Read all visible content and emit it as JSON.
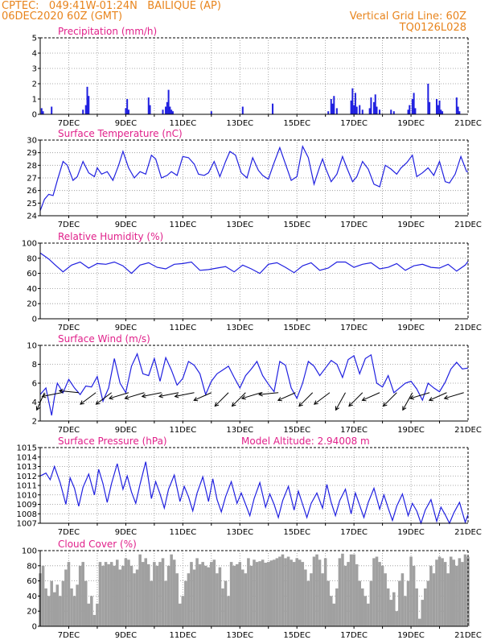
{
  "header": {
    "line1": "CPTEC:   049:41W-01:24N   BAILIQUE (AP)",
    "line2": "06DEC2020 60Z (GMT)",
    "right1": "Vertical Grid Line: 60Z",
    "right2": "TQ0126L028"
  },
  "colors": {
    "series": "#2020e0",
    "cloud": "#a0a0a0",
    "title": "#e0208a",
    "header": "#e8841c",
    "wind": "#000000"
  },
  "x_axis": {
    "start_day": 6,
    "end_day": 21,
    "tick_labels": [
      "7DEC",
      "9DEC",
      "11DEC",
      "13DEC",
      "15DEC",
      "17DEC",
      "19DEC",
      "21DEC"
    ],
    "tick_days": [
      7,
      9,
      11,
      13,
      15,
      17,
      19,
      21
    ],
    "grid_days": [
      7,
      8,
      9,
      10,
      11,
      12,
      13,
      14,
      15,
      16,
      17,
      18,
      19,
      20
    ]
  },
  "chart_data": [
    {
      "type": "bar",
      "title": "Precipitation (mm/h)",
      "ylim": [
        0,
        5
      ],
      "yticks": [
        0,
        1,
        2,
        3,
        4,
        5
      ],
      "x": [
        6.05,
        6.1,
        6.4,
        7.5,
        7.6,
        7.65,
        7.7,
        9.0,
        9.05,
        9.1,
        9.8,
        9.85,
        10.3,
        10.4,
        10.45,
        10.5,
        10.55,
        10.6,
        10.65,
        12.0,
        13.1,
        14.15,
        16.1,
        16.2,
        16.25,
        16.3,
        16.4,
        16.9,
        16.95,
        17.0,
        17.05,
        17.1,
        17.2,
        17.3,
        17.55,
        17.6,
        17.7,
        17.75,
        17.8,
        17.9,
        18.3,
        18.4,
        18.9,
        18.95,
        19.05,
        19.1,
        19.15,
        19.6,
        19.65,
        19.9,
        19.95,
        20.0,
        20.05,
        20.1,
        20.6,
        20.65,
        20.7
      ],
      "values": [
        0.4,
        0.2,
        0.5,
        0.3,
        0.6,
        1.8,
        1.2,
        0.4,
        1.0,
        0.3,
        1.1,
        0.6,
        0.3,
        0.5,
        0.8,
        1.6,
        0.5,
        0.3,
        0.2,
        0.2,
        0.5,
        0.7,
        0.2,
        1.0,
        0.7,
        1.2,
        0.4,
        0.9,
        1.7,
        0.6,
        1.4,
        0.5,
        0.6,
        0.3,
        0.4,
        1.1,
        0.8,
        1.3,
        0.5,
        0.3,
        0.3,
        0.2,
        0.3,
        0.6,
        1.0,
        1.4,
        0.4,
        2.0,
        0.8,
        1.0,
        0.6,
        0.9,
        0.3,
        0.2,
        1.1,
        0.5,
        0.2
      ]
    },
    {
      "type": "line",
      "title": "Surface Temperature (nC)",
      "ylim": [
        24,
        30
      ],
      "yticks": [
        24,
        25,
        26,
        27,
        28,
        29,
        30
      ],
      "x": [
        6.0,
        6.15,
        6.3,
        6.45,
        6.6,
        6.8,
        6.95,
        7.15,
        7.3,
        7.5,
        7.7,
        7.9,
        8.0,
        8.15,
        8.35,
        8.55,
        8.75,
        8.9,
        9.1,
        9.3,
        9.5,
        9.7,
        9.9,
        10.05,
        10.25,
        10.45,
        10.6,
        10.8,
        11.0,
        11.2,
        11.4,
        11.55,
        11.75,
        11.9,
        12.1,
        12.3,
        12.5,
        12.65,
        12.85,
        13.05,
        13.25,
        13.45,
        13.65,
        13.8,
        14.0,
        14.2,
        14.4,
        14.6,
        14.8,
        15.0,
        15.2,
        15.4,
        15.6,
        15.8,
        15.9,
        16.0,
        16.2,
        16.4,
        16.6,
        16.75,
        16.95,
        17.1,
        17.3,
        17.5,
        17.7,
        17.9,
        18.1,
        18.3,
        18.5,
        18.65,
        18.85,
        19.05,
        19.2,
        19.4,
        19.6,
        19.8,
        20.0,
        20.2,
        20.35,
        20.55,
        20.75,
        20.95,
        21.0
      ],
      "values": [
        24.4,
        25.3,
        25.7,
        25.6,
        26.8,
        28.3,
        28.0,
        26.8,
        27.1,
        28.3,
        27.4,
        27.1,
        27.8,
        27.3,
        27.5,
        26.8,
        28.0,
        29.1,
        27.8,
        27.0,
        27.5,
        27.3,
        28.8,
        28.5,
        27.0,
        27.2,
        27.5,
        27.2,
        28.7,
        28.6,
        28.1,
        27.3,
        27.2,
        27.4,
        28.3,
        27.1,
        28.3,
        29.1,
        28.8,
        27.4,
        27.0,
        28.6,
        27.6,
        27.2,
        26.9,
        28.2,
        29.4,
        28.1,
        26.8,
        27.1,
        29.5,
        28.6,
        26.5,
        27.9,
        28.5,
        27.8,
        26.7,
        27.3,
        28.7,
        27.8,
        26.7,
        27.1,
        28.3,
        27.7,
        26.5,
        26.3,
        28.0,
        27.7,
        27.3,
        27.8,
        28.2,
        28.8,
        27.1,
        27.4,
        27.8,
        27.2,
        28.3,
        26.7,
        26.6,
        27.3,
        28.7,
        27.5,
        27.5
      ]
    },
    {
      "type": "line",
      "title": "Relative Humidity (%)",
      "ylim": [
        0,
        100
      ],
      "yticks": [
        0,
        20,
        40,
        60,
        80,
        100
      ],
      "x": [
        6.0,
        6.3,
        6.5,
        6.8,
        7.1,
        7.4,
        7.7,
        8.0,
        8.3,
        8.6,
        8.9,
        9.2,
        9.5,
        9.8,
        10.1,
        10.4,
        10.7,
        11.0,
        11.3,
        11.6,
        11.9,
        12.2,
        12.5,
        12.8,
        13.1,
        13.4,
        13.7,
        14.0,
        14.3,
        14.6,
        14.9,
        15.2,
        15.5,
        15.8,
        16.1,
        16.4,
        16.7,
        17.0,
        17.3,
        17.6,
        17.9,
        18.2,
        18.5,
        18.8,
        19.1,
        19.4,
        19.7,
        20.0,
        20.3,
        20.6,
        20.9,
        21.0
      ],
      "values": [
        87,
        79,
        72,
        62,
        71,
        75,
        67,
        73,
        72,
        75,
        70,
        60,
        71,
        74,
        68,
        66,
        72,
        73,
        75,
        64,
        65,
        67,
        69,
        62,
        71,
        66,
        60,
        72,
        74,
        68,
        61,
        70,
        74,
        64,
        67,
        75,
        75,
        68,
        72,
        74,
        66,
        68,
        73,
        64,
        70,
        72,
        68,
        67,
        72,
        63,
        71,
        76
      ]
    },
    {
      "type": "line",
      "title": "Surface Wind (m/s)",
      "ylim": [
        2,
        10
      ],
      "yticks": [
        2,
        4,
        6,
        8,
        10
      ],
      "x": [
        6.0,
        6.2,
        6.4,
        6.5,
        6.6,
        6.8,
        7.0,
        7.2,
        7.4,
        7.6,
        7.8,
        8.0,
        8.2,
        8.4,
        8.6,
        8.8,
        9.0,
        9.2,
        9.4,
        9.6,
        9.8,
        10.0,
        10.2,
        10.4,
        10.6,
        10.8,
        11.0,
        11.2,
        11.4,
        11.6,
        11.8,
        12.0,
        12.2,
        12.4,
        12.6,
        12.8,
        13.0,
        13.2,
        13.4,
        13.6,
        13.8,
        14.0,
        14.2,
        14.4,
        14.6,
        14.8,
        15.0,
        15.2,
        15.4,
        15.6,
        15.8,
        16.0,
        16.2,
        16.4,
        16.6,
        16.8,
        17.0,
        17.2,
        17.4,
        17.6,
        17.8,
        18.0,
        18.2,
        18.4,
        18.6,
        18.8,
        19.0,
        19.2,
        19.4,
        19.6,
        19.8,
        20.0,
        20.2,
        20.4,
        20.6,
        20.8,
        21.0
      ],
      "values": [
        4.8,
        5.5,
        2.6,
        4.5,
        6.0,
        5.0,
        6.4,
        5.5,
        4.8,
        5.7,
        5.6,
        6.7,
        4.1,
        5.5,
        8.6,
        6.0,
        5.0,
        7.8,
        9.1,
        7.0,
        6.8,
        8.6,
        6.2,
        8.7,
        7.4,
        5.8,
        6.5,
        8.3,
        7.9,
        7.0,
        4.8,
        6.2,
        7.0,
        7.4,
        7.8,
        6.6,
        5.5,
        6.8,
        7.5,
        8.3,
        6.8,
        5.9,
        5.1,
        8.3,
        7.9,
        5.5,
        4.4,
        6.0,
        8.3,
        7.8,
        6.8,
        7.6,
        8.4,
        8.0,
        6.6,
        8.5,
        8.9,
        7.0,
        8.6,
        9.0,
        6.0,
        5.6,
        6.8,
        5.0,
        5.5,
        6.0,
        6.2,
        5.4,
        4.2,
        6.0,
        5.5,
        5.1,
        6.1,
        7.5,
        8.2,
        7.5,
        7.6
      ]
    },
    {
      "type": "line",
      "title": "Surface Pressure (hPa)",
      "ylim": [
        1007,
        1015
      ],
      "yticks": [
        1007,
        1008,
        1009,
        1010,
        1011,
        1012,
        1013,
        1014,
        1015
      ],
      "x": [
        6.0,
        6.2,
        6.35,
        6.5,
        6.7,
        6.9,
        7.05,
        7.2,
        7.35,
        7.5,
        7.7,
        7.9,
        8.05,
        8.2,
        8.35,
        8.5,
        8.7,
        8.9,
        9.05,
        9.2,
        9.35,
        9.5,
        9.7,
        9.9,
        10.05,
        10.2,
        10.35,
        10.5,
        10.7,
        10.9,
        11.05,
        11.2,
        11.35,
        11.5,
        11.7,
        11.9,
        12.05,
        12.2,
        12.35,
        12.5,
        12.7,
        12.9,
        13.05,
        13.2,
        13.35,
        13.5,
        13.7,
        13.9,
        14.05,
        14.2,
        14.35,
        14.5,
        14.7,
        14.9,
        15.05,
        15.2,
        15.35,
        15.5,
        15.7,
        15.9,
        16.05,
        16.2,
        16.35,
        16.5,
        16.7,
        16.9,
        17.05,
        17.2,
        17.35,
        17.5,
        17.7,
        17.9,
        18.05,
        18.2,
        18.35,
        18.5,
        18.7,
        18.9,
        19.05,
        19.2,
        19.35,
        19.5,
        19.7,
        19.9,
        20.05,
        20.2,
        20.35,
        20.5,
        20.7,
        20.9,
        21.0
      ],
      "values": [
        1012.0,
        1012.3,
        1011.6,
        1013.0,
        1011.3,
        1009.0,
        1011.8,
        1010.7,
        1008.8,
        1010.8,
        1012.2,
        1010.0,
        1012.7,
        1011.2,
        1009.2,
        1011.2,
        1013.3,
        1010.6,
        1012.0,
        1010.3,
        1009.1,
        1011.1,
        1013.5,
        1009.6,
        1011.4,
        1010.1,
        1008.6,
        1010.6,
        1012.1,
        1009.3,
        1010.9,
        1009.8,
        1008.3,
        1010.2,
        1011.9,
        1009.3,
        1011.7,
        1009.5,
        1008.2,
        1009.8,
        1011.4,
        1009.1,
        1010.2,
        1009.0,
        1007.8,
        1009.6,
        1011.3,
        1008.7,
        1010.1,
        1009.0,
        1007.6,
        1009.4,
        1010.9,
        1008.4,
        1010.4,
        1009.0,
        1007.6,
        1009.1,
        1010.2,
        1008.6,
        1011.1,
        1009.2,
        1007.8,
        1009.4,
        1010.6,
        1008.0,
        1010.2,
        1008.9,
        1007.6,
        1009.2,
        1010.7,
        1008.5,
        1010.0,
        1008.6,
        1007.3,
        1008.8,
        1010.1,
        1007.8,
        1009.1,
        1008.3,
        1006.9,
        1008.4,
        1009.5,
        1007.2,
        1008.7,
        1007.9,
        1006.8,
        1008.1,
        1009.2,
        1007.1,
        1007.9
      ]
    },
    {
      "type": "area",
      "title": "Cloud Cover (%)",
      "ylim": [
        0,
        100
      ],
      "yticks": [
        0,
        20,
        40,
        60,
        80,
        100
      ],
      "x": [
        6.0,
        6.1,
        6.2,
        6.3,
        6.4,
        6.5,
        6.6,
        6.7,
        6.8,
        6.9,
        7.0,
        7.1,
        7.2,
        7.3,
        7.4,
        7.5,
        7.6,
        7.7,
        7.8,
        7.9,
        8.0,
        8.1,
        8.2,
        8.3,
        8.4,
        8.5,
        8.6,
        8.7,
        8.8,
        8.9,
        9.0,
        9.1,
        9.2,
        9.3,
        9.4,
        9.5,
        9.6,
        9.7,
        9.8,
        9.9,
        10.0,
        10.1,
        10.2,
        10.3,
        10.4,
        10.5,
        10.6,
        10.7,
        10.8,
        10.9,
        11.0,
        11.1,
        11.2,
        11.3,
        11.4,
        11.5,
        11.6,
        11.7,
        11.8,
        11.9,
        12.0,
        12.1,
        12.2,
        12.3,
        12.4,
        12.5,
        12.6,
        12.7,
        12.8,
        12.9,
        13.0,
        13.1,
        13.2,
        13.3,
        13.4,
        13.5,
        13.6,
        13.7,
        13.8,
        13.9,
        14.0,
        14.1,
        14.2,
        14.3,
        14.4,
        14.5,
        14.6,
        14.7,
        14.8,
        14.9,
        15.0,
        15.1,
        15.2,
        15.3,
        15.4,
        15.5,
        15.6,
        15.7,
        15.8,
        15.9,
        16.0,
        16.1,
        16.2,
        16.3,
        16.4,
        16.5,
        16.6,
        16.7,
        16.8,
        16.9,
        17.0,
        17.1,
        17.2,
        17.3,
        17.4,
        17.5,
        17.6,
        17.7,
        17.8,
        17.9,
        18.0,
        18.1,
        18.2,
        18.3,
        18.4,
        18.5,
        18.6,
        18.7,
        18.8,
        18.9,
        19.0,
        19.1,
        19.2,
        19.3,
        19.4,
        19.5,
        19.6,
        19.7,
        19.8,
        19.9,
        20.0,
        20.1,
        20.2,
        20.3,
        20.4,
        20.5,
        20.6,
        20.7,
        20.8,
        20.9,
        21.0
      ],
      "values": [
        70,
        80,
        50,
        40,
        60,
        45,
        55,
        40,
        60,
        75,
        85,
        50,
        40,
        55,
        80,
        85,
        60,
        30,
        40,
        15,
        30,
        85,
        80,
        85,
        82,
        85,
        80,
        88,
        75,
        80,
        90,
        88,
        80,
        70,
        75,
        95,
        85,
        90,
        82,
        60,
        85,
        80,
        85,
        90,
        60,
        80,
        95,
        88,
        70,
        30,
        40,
        60,
        70,
        85,
        75,
        90,
        82,
        85,
        80,
        78,
        85,
        88,
        70,
        78,
        50,
        60,
        40,
        85,
        80,
        82,
        85,
        75,
        70,
        90,
        80,
        88,
        85,
        86,
        88,
        84,
        85,
        87,
        88,
        90,
        92,
        95,
        90,
        92,
        88,
        85,
        90,
        88,
        85,
        75,
        60,
        70,
        92,
        95,
        88,
        70,
        90,
        60,
        40,
        30,
        50,
        90,
        96,
        80,
        85,
        95,
        95,
        82,
        60,
        50,
        40,
        30,
        60,
        90,
        92,
        85,
        80,
        70,
        50,
        35,
        45,
        20,
        60,
        70,
        40,
        60,
        92,
        80,
        50,
        10,
        35,
        50,
        60,
        80,
        70,
        88,
        92,
        90,
        85,
        70,
        92,
        88,
        80,
        90,
        85,
        95,
        92
      ]
    }
  ],
  "wind_arrows": {
    "x": [
      6.15,
      6.75,
      7.35,
      7.95,
      8.5,
      9.1,
      9.65,
      10.25,
      10.85,
      11.4,
      12.0,
      12.6,
      13.2,
      13.75,
      14.35,
      14.95,
      15.55,
      16.15,
      16.7,
      17.3,
      17.9,
      18.5,
      19.05,
      19.65,
      20.25,
      20.85
    ],
    "u": [
      -0.4,
      -1.0,
      -1.0,
      -0.8,
      -0.8,
      -1.0,
      -1.0,
      -1.0,
      -1.0,
      -1.0,
      -0.9,
      -0.7,
      -0.7,
      -1.0,
      -1.0,
      -0.9,
      -0.7,
      -0.8,
      -0.5,
      -0.7,
      -0.9,
      -0.7,
      -0.5,
      -1.0,
      -0.9,
      -1.0
    ],
    "v": [
      -0.9,
      -0.2,
      0.1,
      -0.6,
      -0.6,
      -0.3,
      -0.3,
      -0.2,
      -0.2,
      -0.2,
      -0.4,
      -0.7,
      -0.7,
      -0.3,
      -0.1,
      -0.4,
      -0.7,
      -0.6,
      -0.9,
      -0.7,
      -0.4,
      -0.7,
      -0.9,
      -0.3,
      -0.4,
      -0.3
    ]
  },
  "extra": {
    "model_altitude": "Model Altitude: 2.94008 m"
  }
}
